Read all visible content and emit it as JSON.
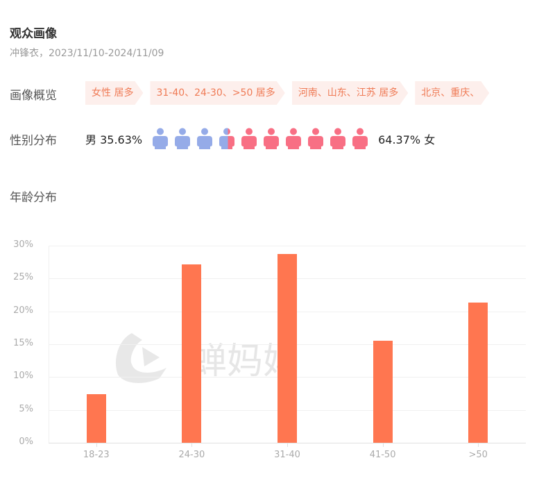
{
  "header": {
    "title": "观众画像",
    "subtitle": "冲锋衣，2023/11/10-2024/11/09"
  },
  "overview": {
    "label": "画像概览",
    "tags": [
      "女性 居多",
      "31-40、24-30、>50 居多",
      "河南、山东、江苏 居多",
      "北京、重庆、"
    ]
  },
  "gender": {
    "label": "性别分布",
    "male_text": "男 35.63%",
    "female_text": "64.37% 女",
    "male_pct": 35.63,
    "female_pct": 64.37,
    "icon_count": 10,
    "male_color": "#95abe8",
    "female_color": "#f86f84"
  },
  "age_section": {
    "title": "年龄分布"
  },
  "watermark": "蝉妈妈",
  "chart_data": {
    "type": "bar",
    "title": "年龄分布",
    "categories": [
      "18-23",
      "24-30",
      "31-40",
      "41-50",
      ">50"
    ],
    "values": [
      7.4,
      27.1,
      28.7,
      15.5,
      21.3
    ],
    "unit": "%",
    "xlabel": "",
    "ylabel": "",
    "ylim": [
      0,
      30
    ],
    "yticks": [
      "0%",
      "5%",
      "10%",
      "15%",
      "20%",
      "25%",
      "30%"
    ],
    "grid": true,
    "legend": "none",
    "bar_color": "#ff7650"
  }
}
